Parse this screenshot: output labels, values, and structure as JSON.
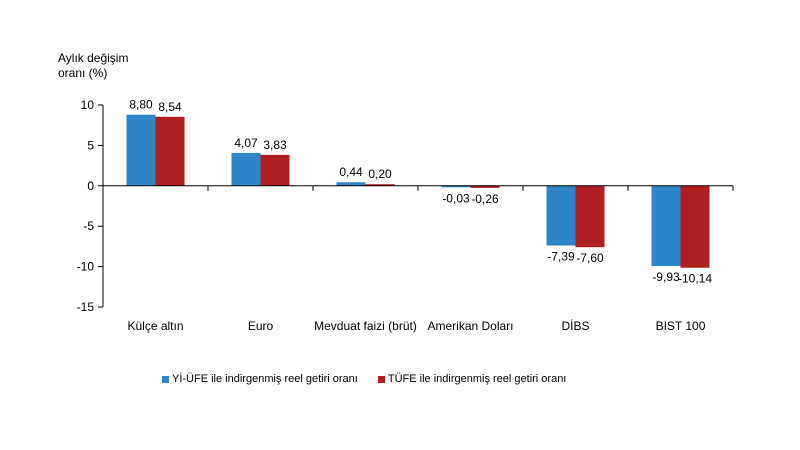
{
  "chart_data": {
    "type": "bar",
    "ylabel_lines": [
      "Aylık değişim",
      "oranı (%)"
    ],
    "categories": [
      "Külçe altın",
      "Euro",
      "Mevduat faizi (brüt)",
      "Amerikan Doları",
      "DİBS",
      "BIST 100"
    ],
    "series": [
      {
        "name": "Yİ-ÜFE ile indirgenmiş reel getiri oranı",
        "color": "#2e86c8",
        "values": [
          8.8,
          4.07,
          0.44,
          -0.03,
          -7.39,
          -9.93
        ],
        "labels": [
          "8,80",
          "4,07",
          "0,44",
          "-0,03",
          "-7,39",
          "-9,93"
        ]
      },
      {
        "name": "TÜFE ile indirgenmiş reel getiri oranı",
        "color": "#b01e22",
        "values": [
          8.54,
          3.83,
          0.2,
          -0.26,
          -7.6,
          -10.14
        ],
        "labels": [
          "8,54",
          "3,83",
          "0,20",
          "-0,26",
          "-7,60",
          "-10,14"
        ]
      }
    ],
    "yticks": [
      10,
      5,
      0,
      -5,
      -10,
      -15
    ],
    "ytick_labels": [
      "10",
      "5",
      "0",
      "-5",
      "-10",
      "-15"
    ],
    "ylim": [
      -15,
      10
    ],
    "grid": false,
    "legend_position": "bottom"
  }
}
